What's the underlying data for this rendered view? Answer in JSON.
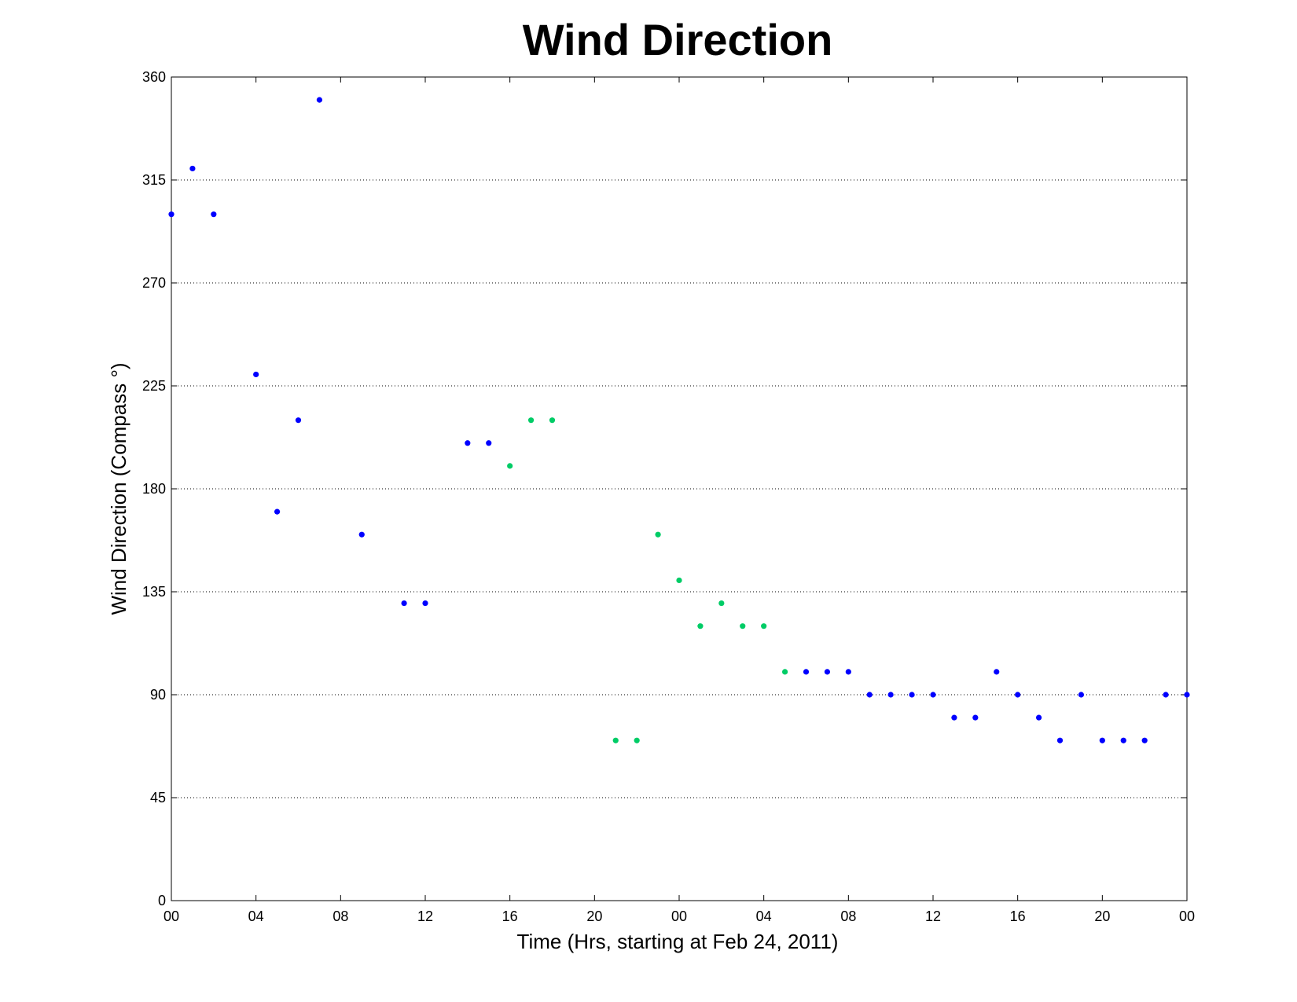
{
  "chart_data": {
    "type": "scatter",
    "title": "Wind Direction",
    "xlabel": "Time (Hrs, starting at Feb 24, 2011)",
    "ylabel": "Wind Direction (Compass  °)",
    "xlim": [
      0,
      48
    ],
    "ylim": [
      0,
      360
    ],
    "x_ticks": [
      0,
      4,
      8,
      12,
      16,
      20,
      24,
      28,
      32,
      36,
      40,
      44,
      48
    ],
    "x_tick_labels": [
      "00",
      "04",
      "08",
      "12",
      "16",
      "20",
      "00",
      "04",
      "08",
      "12",
      "16",
      "20",
      "00"
    ],
    "y_ticks": [
      0,
      45,
      90,
      135,
      180,
      225,
      270,
      315,
      360
    ],
    "y_tick_labels": [
      "0",
      "45",
      "90",
      "135",
      "180",
      "225",
      "270",
      "315",
      "360"
    ],
    "grid": "horizontal dotted",
    "series": [
      {
        "color": "#0000ff",
        "points": [
          [
            0,
            300
          ],
          [
            1,
            320
          ],
          [
            2,
            300
          ],
          [
            4,
            230
          ],
          [
            5,
            170
          ],
          [
            6,
            210
          ],
          [
            7,
            350
          ],
          [
            9,
            160
          ],
          [
            11,
            130
          ],
          [
            12,
            130
          ],
          [
            14,
            200
          ],
          [
            15,
            200
          ],
          [
            30,
            100
          ],
          [
            31,
            100
          ],
          [
            32,
            100
          ],
          [
            33,
            90
          ],
          [
            34,
            90
          ],
          [
            35,
            90
          ],
          [
            36,
            90
          ],
          [
            37,
            80
          ],
          [
            38,
            80
          ],
          [
            39,
            100
          ],
          [
            40,
            90
          ],
          [
            41,
            80
          ],
          [
            42,
            70
          ],
          [
            43,
            90
          ],
          [
            44,
            70
          ],
          [
            45,
            70
          ],
          [
            46,
            70
          ],
          [
            47,
            90
          ],
          [
            48,
            90
          ]
        ]
      },
      {
        "color": "#00cc66",
        "points": [
          [
            16,
            190
          ],
          [
            17,
            210
          ],
          [
            18,
            210
          ],
          [
            21,
            70
          ],
          [
            22,
            70
          ],
          [
            23,
            160
          ],
          [
            24,
            140
          ],
          [
            25,
            120
          ],
          [
            26,
            130
          ],
          [
            27,
            120
          ],
          [
            28,
            120
          ],
          [
            29,
            100
          ]
        ]
      }
    ]
  }
}
